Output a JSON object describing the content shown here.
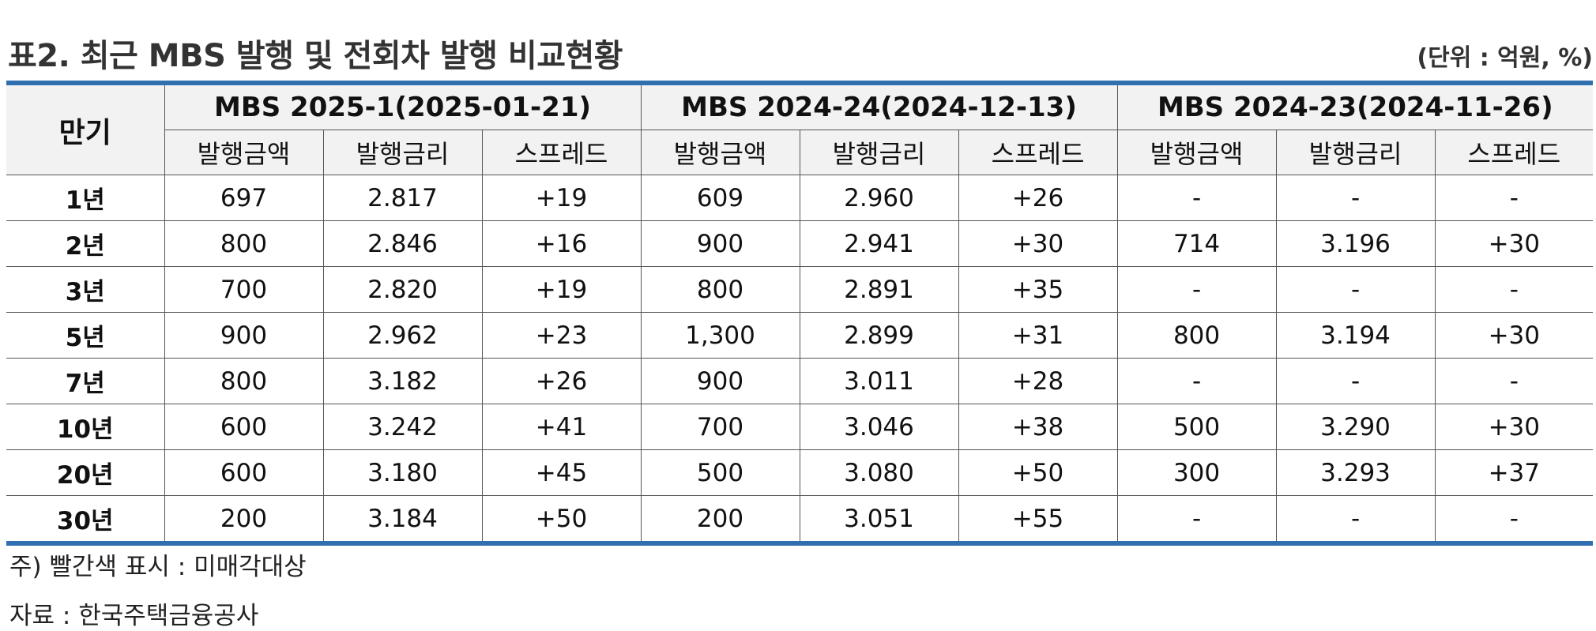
{
  "title": "표2. 최근 MBS 발행 및 전회차 발행 비교현황",
  "unit": "(단위 : 억원, %)",
  "table": {
    "maturity_header": "만기",
    "groups": [
      "MBS 2025-1(2025-01-21)",
      "MBS 2024-24(2024-12-13)",
      "MBS 2024-23(2024-11-26)"
    ],
    "subheaders": [
      "발행금액",
      "발행금리",
      "스프레드"
    ],
    "rows": [
      {
        "maturity": "1년",
        "cells": [
          "697",
          "2.817",
          "+19",
          "609",
          "2.960",
          "+26",
          "-",
          "-",
          "-"
        ]
      },
      {
        "maturity": "2년",
        "cells": [
          "800",
          "2.846",
          "+16",
          "900",
          "2.941",
          "+30",
          "714",
          "3.196",
          "+30"
        ]
      },
      {
        "maturity": "3년",
        "cells": [
          "700",
          "2.820",
          "+19",
          "800",
          "2.891",
          "+35",
          "-",
          "-",
          "-"
        ]
      },
      {
        "maturity": "5년",
        "cells": [
          "900",
          "2.962",
          "+23",
          "1,300",
          "2.899",
          "+31",
          "800",
          "3.194",
          "+30"
        ]
      },
      {
        "maturity": "7년",
        "cells": [
          "800",
          "3.182",
          "+26",
          "900",
          "3.011",
          "+28",
          "-",
          "-",
          "-"
        ]
      },
      {
        "maturity": "10년",
        "cells": [
          "600",
          "3.242",
          "+41",
          "700",
          "3.046",
          "+38",
          "500",
          "3.290",
          "+30"
        ]
      },
      {
        "maturity": "20년",
        "cells": [
          "600",
          "3.180",
          "+45",
          "500",
          "3.080",
          "+50",
          "300",
          "3.293",
          "+37"
        ]
      },
      {
        "maturity": "30년",
        "cells": [
          "200",
          "3.184",
          "+50",
          "200",
          "3.051",
          "+55",
          "-",
          "-",
          "-"
        ]
      }
    ]
  },
  "notes": {
    "note": "주) 빨간색 표시 : 미매각대상",
    "source": "자료 : 한국주택금융공사"
  },
  "colors": {
    "accent_border": "#2f6fb0",
    "header_bg": "#f2f2f2"
  }
}
